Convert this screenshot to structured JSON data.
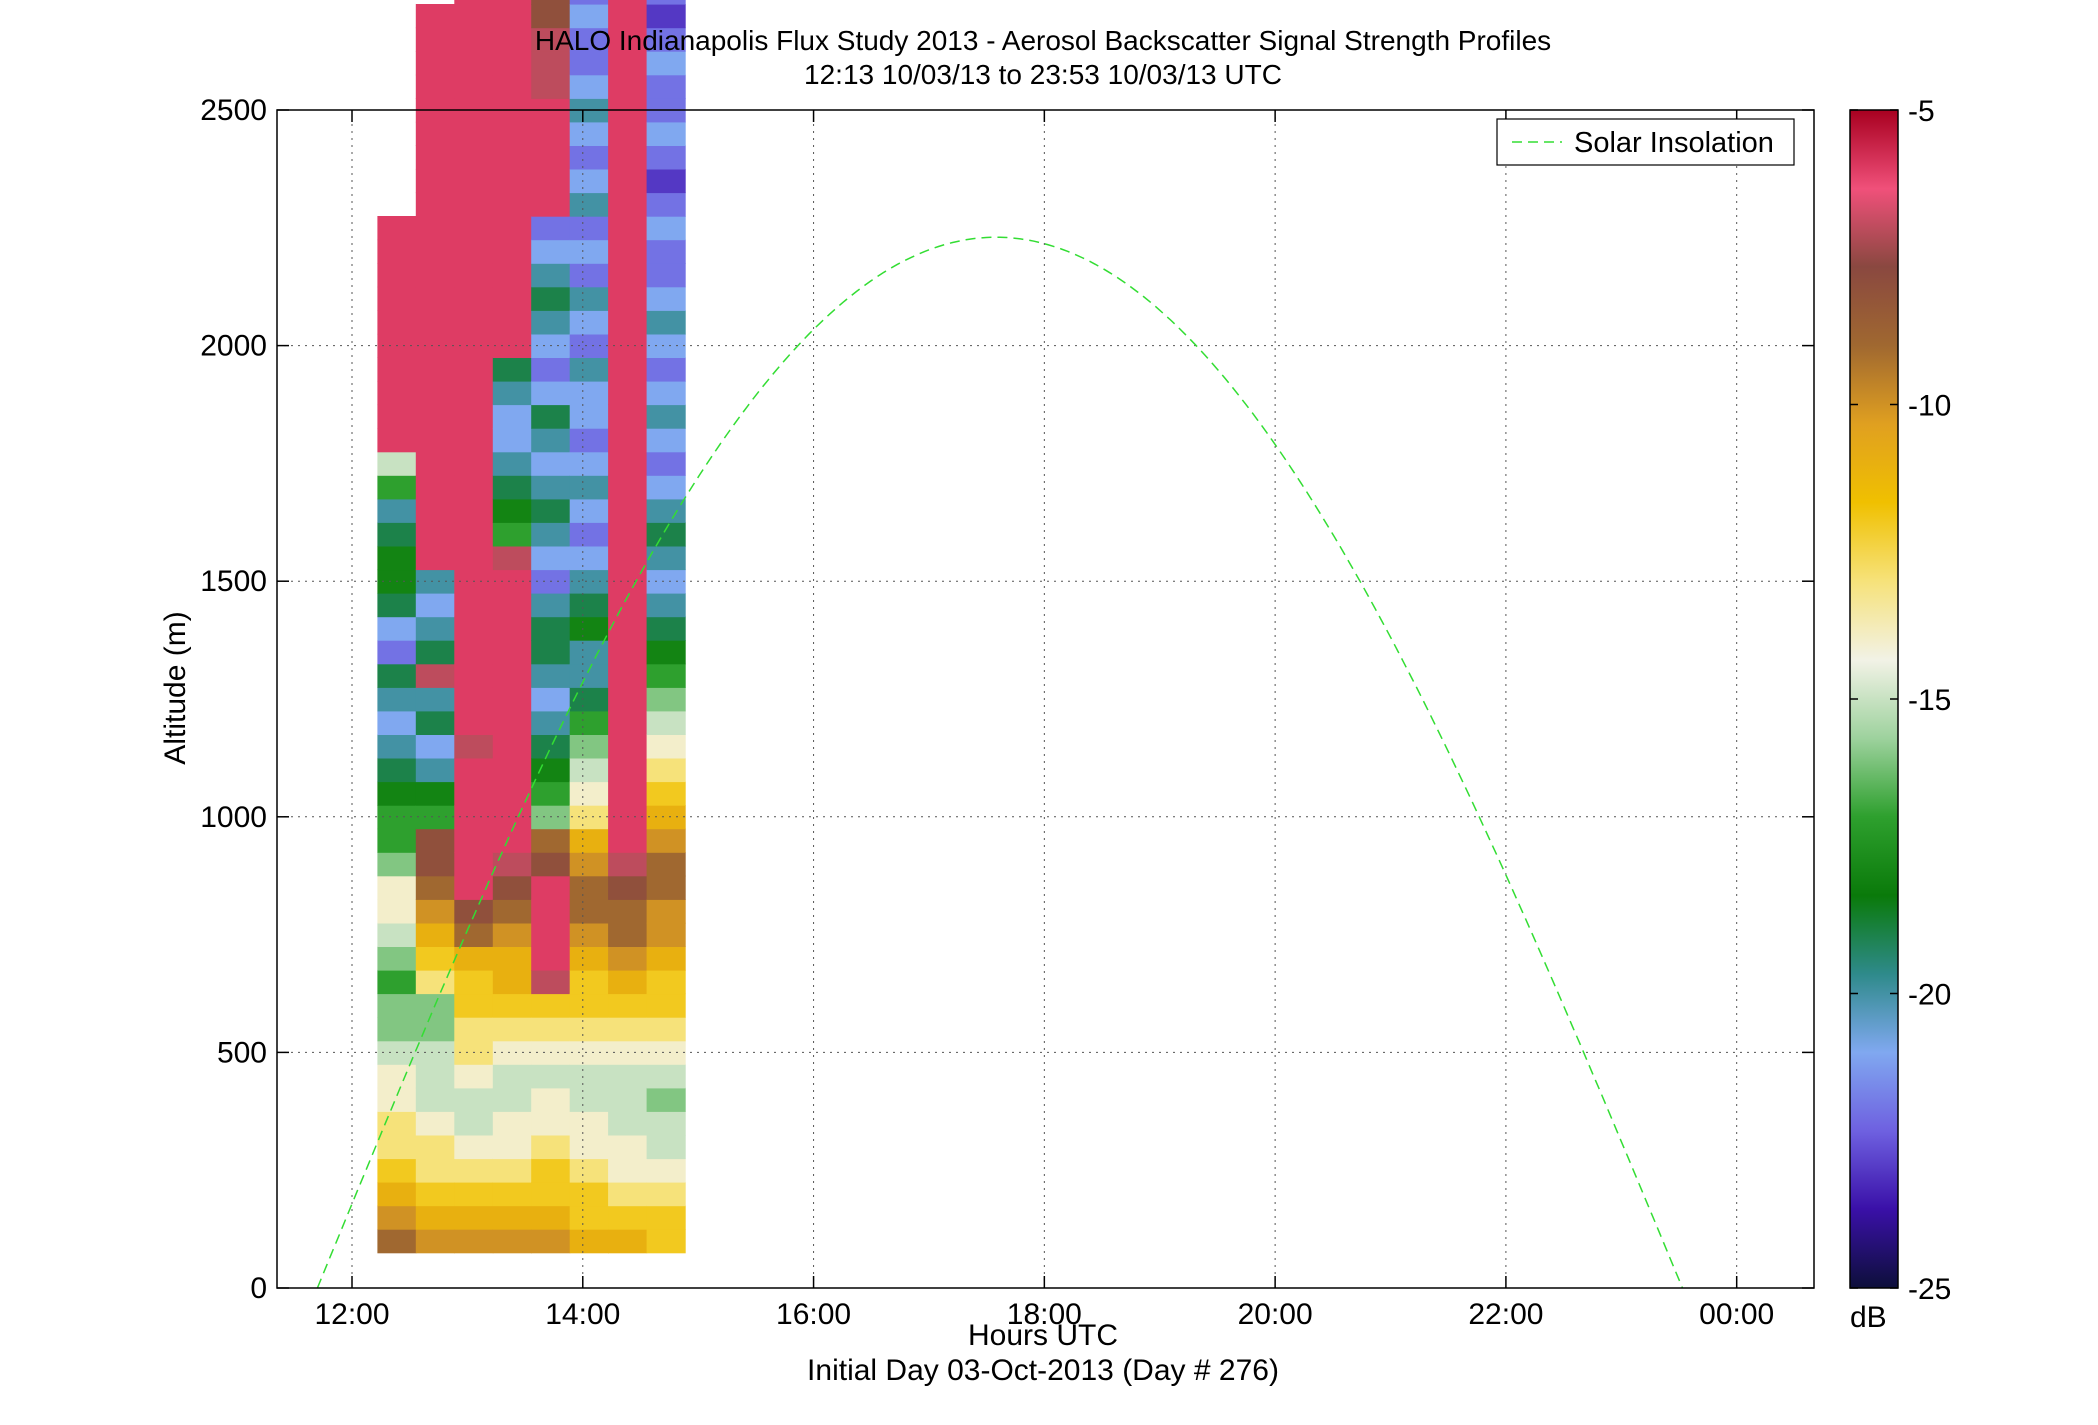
{
  "chart_data": {
    "type": "heatmap",
    "title": "HALO Indianapolis Flux Study 2013 - Aerosol Backscatter Signal Strength Profiles",
    "subtitle": "12:13 10/03/13 to 23:53 10/03/13  UTC",
    "xlabel": "Hours UTC",
    "xlabel2": "Initial Day 03-Oct-2013 (Day # 276)",
    "ylabel": "Altitude (m)",
    "x_tick_labels": [
      "12:00",
      "14:00",
      "16:00",
      "18:00",
      "20:00",
      "22:00",
      "00:00"
    ],
    "x_tick_hours": [
      12,
      14,
      16,
      18,
      20,
      22,
      24
    ],
    "xlim_hours": [
      11.35,
      24.67
    ],
    "y_ticks": [
      0,
      500,
      1000,
      1500,
      2000,
      2500
    ],
    "ylim": [
      0,
      2500
    ],
    "grid": true,
    "legend": {
      "entries": [
        "Solar Insolation"
      ],
      "placement": "top-right"
    },
    "colorbar": {
      "ticks": [
        -5,
        -10,
        -15,
        -20,
        -25
      ],
      "range": [
        -25,
        -5
      ],
      "unit": "dB",
      "colors": [
        "#0d0f3a",
        "#3a10a8",
        "#6e60e0",
        "#80a8f0",
        "#2e8a8a",
        "#0a7a0a",
        "#2ea02e",
        "#9ed29e",
        "#f2f2e6",
        "#f6e27a",
        "#f0c000",
        "#e0a020",
        "#a06830",
        "#8a4840",
        "#f0507a",
        "#a80020"
      ]
    },
    "solar_insolation": {
      "start_hour": 11.7,
      "peak_hour": 17.58,
      "end_hour": 23.53,
      "peak_altitude_m": 2230
    },
    "profiles": {
      "start_hour": 12.22,
      "step_hours": 0.3333,
      "bin_bottom_m": 75,
      "bin_height_m": 50,
      "dB": [
        [
          -9,
          -10,
          -11,
          -12,
          -13,
          -13,
          -14,
          -14,
          -15,
          -16,
          -16,
          -17,
          -16,
          -15,
          -14,
          -14,
          -16,
          -17,
          -17,
          -18,
          -19,
          -20,
          -21,
          -20,
          -19,
          -22,
          -21,
          -19,
          -18,
          -18,
          -19,
          -20,
          -17,
          -15,
          -6,
          -6,
          -6,
          -6,
          -6,
          -6,
          -6,
          -6,
          -6,
          -6,
          null,
          null,
          null,
          null,
          null,
          null,
          null,
          null,
          null,
          null,
          null,
          null,
          null,
          null,
          null,
          null,
          null,
          null,
          null,
          null,
          null,
          null,
          null,
          null,
          null,
          null,
          null,
          null,
          null,
          null,
          null,
          null,
          null,
          null,
          null,
          null,
          null,
          null,
          null,
          null,
          null,
          null,
          null,
          null,
          null,
          null,
          null,
          null,
          null,
          null,
          null,
          null,
          null,
          null,
          null
        ],
        [
          -10,
          -11,
          -12,
          -13,
          -13,
          -14,
          -15,
          -15,
          -15,
          -16,
          -16,
          -13,
          -12,
          -11,
          -10,
          -9,
          -8,
          -8,
          -17,
          -18,
          -20,
          -21,
          -19,
          -20,
          -7,
          -19,
          -20,
          -21,
          -20,
          -6,
          -6,
          -6,
          -6,
          -6,
          -6,
          -6,
          -6,
          -6,
          -6,
          -6,
          -6,
          -6,
          -6,
          -6,
          -6,
          -6,
          -6,
          -6,
          -6,
          -6,
          -6,
          -6,
          -6,
          null,
          null,
          null,
          null,
          null,
          null,
          null,
          null,
          null,
          null,
          null,
          null,
          null,
          null,
          null,
          null,
          null,
          null,
          null,
          null,
          null,
          null,
          null,
          null,
          null,
          null,
          null,
          null,
          null,
          null,
          null,
          null,
          null,
          null,
          null,
          null,
          null,
          null,
          null,
          null,
          null,
          null,
          null,
          null,
          null,
          null,
          null,
          null
        ],
        [
          -10,
          -11,
          -12,
          -13,
          -14,
          -15,
          -15,
          -14,
          -13,
          -13,
          -12,
          -12,
          -11,
          -9,
          -8,
          -6,
          -6,
          -6,
          -6,
          -6,
          -6,
          -7,
          -6,
          -6,
          -6,
          -6,
          -6,
          -6,
          -6,
          -6,
          -6,
          -6,
          -6,
          -6,
          -6,
          -6,
          -6,
          -6,
          -6,
          -6,
          -6,
          -6,
          -6,
          -6,
          -6,
          -6,
          -6,
          -6,
          -6,
          -6,
          -6,
          -6,
          -6,
          -6,
          -6,
          -6,
          -6,
          -6,
          -6,
          -7,
          -7,
          -15,
          -14,
          -16,
          -22,
          null,
          null,
          null,
          null,
          null,
          null,
          null,
          null,
          null,
          null,
          null,
          null,
          null,
          null,
          null,
          null,
          null,
          null,
          null,
          null,
          null,
          null,
          null,
          null,
          null,
          null,
          null,
          null,
          null,
          null,
          null,
          null,
          null,
          null
        ],
        [
          -10,
          -11,
          -12,
          -13,
          -14,
          -14,
          -15,
          -15,
          -14,
          -13,
          -12,
          -11,
          -11,
          -10,
          -9,
          -8,
          -7,
          -6,
          -6,
          -6,
          -6,
          -6,
          -6,
          -6,
          -6,
          -6,
          -6,
          -6,
          -6,
          -7,
          -17,
          -18,
          -19,
          -20,
          -21,
          -21,
          -20,
          -19,
          -6,
          -6,
          -6,
          -6,
          -6,
          -6,
          -6,
          -6,
          -6,
          -6,
          -6,
          -6,
          -6,
          -6,
          -6,
          -6,
          -6,
          -6,
          -6,
          -6,
          -6,
          -6,
          -6,
          -6,
          -6,
          -6,
          -6,
          -6,
          -6,
          -6,
          -6,
          -6,
          -6,
          null,
          null,
          null,
          null,
          null,
          null,
          null,
          null,
          null,
          null,
          null,
          null,
          null,
          null,
          null,
          null,
          null,
          null,
          null,
          null,
          null,
          null,
          null,
          null,
          null,
          null,
          null,
          null
        ],
        [
          -10,
          -11,
          -12,
          -12,
          -13,
          -14,
          -14,
          -15,
          -14,
          -13,
          -12,
          -7,
          -6,
          -6,
          -6,
          -6,
          -8,
          -9,
          -16,
          -17,
          -18,
          -19,
          -20,
          -21,
          -20,
          -19,
          -19,
          -20,
          -22,
          -21,
          -20,
          -19,
          -20,
          -21,
          -20,
          -19,
          -21,
          -22,
          -21,
          -20,
          -19,
          -20,
          -21,
          -22,
          -6,
          -6,
          -6,
          -6,
          -6,
          -7,
          -7,
          -7,
          -8,
          -8,
          -9,
          -8,
          -7,
          -6,
          -6,
          -6,
          -6,
          -6,
          -6,
          -6,
          -6,
          -6,
          -7,
          -8,
          -9,
          -10,
          -11,
          -14,
          -15,
          -16,
          null,
          null,
          null,
          null,
          null,
          null,
          null,
          null,
          null,
          null,
          null,
          null,
          null,
          null,
          null,
          null,
          null,
          null,
          null,
          null,
          null,
          null,
          null,
          null
        ],
        [
          -11,
          -12,
          -12,
          -13,
          -14,
          -14,
          -15,
          -15,
          -14,
          -13,
          -12,
          -12,
          -11,
          -10,
          -9,
          -9,
          -10,
          -11,
          -13,
          -14,
          -15,
          -16,
          -17,
          -19,
          -20,
          -20,
          -18,
          -19,
          -20,
          -21,
          -22,
          -21,
          -20,
          -21,
          -22,
          -21,
          -21,
          -20,
          -22,
          -21,
          -20,
          -22,
          -21,
          -22,
          -20,
          -21,
          -22,
          -21,
          -20,
          -21,
          -22,
          -22,
          -21,
          -22,
          -22,
          -21,
          -20,
          -21,
          -22,
          -22,
          -22,
          -21,
          -22,
          -23,
          -22,
          -21,
          -22,
          -23,
          -22,
          -22,
          -21,
          -22,
          -21,
          -22,
          -23,
          -22,
          -22,
          null,
          null,
          null,
          null,
          null,
          null,
          null,
          null,
          null,
          null,
          null,
          null,
          null,
          null,
          null,
          null,
          null,
          null,
          null,
          null,
          null,
          null
        ],
        [
          -11,
          -12,
          -13,
          -14,
          -14,
          -15,
          -15,
          -15,
          -14,
          -13,
          -12,
          -11,
          -10,
          -9,
          -9,
          -8,
          -7,
          -6,
          -6,
          -6,
          -6,
          -6,
          -6,
          -6,
          -6,
          -6,
          -6,
          -6,
          -6,
          -6,
          -6,
          -6,
          -6,
          -6,
          -6,
          -6,
          -6,
          -6,
          -6,
          -6,
          -6,
          -6,
          -6,
          -6,
          -6,
          -6,
          -6,
          -6,
          -6,
          -6,
          -6,
          -6,
          -6,
          -6,
          -6,
          -6,
          -6,
          -6,
          -6,
          -6,
          -6,
          -6,
          -6,
          -6,
          -6,
          -6,
          -6,
          -6,
          -6,
          -6,
          -6,
          -6,
          -6,
          -6,
          -6,
          -6,
          -6,
          -6,
          -6,
          -6,
          -6,
          -6,
          -6,
          -6,
          -6,
          -6,
          -6,
          null,
          null,
          null,
          null,
          null,
          null,
          null,
          null,
          null,
          null,
          null,
          null
        ],
        [
          -12,
          -12,
          -13,
          -14,
          -15,
          -15,
          -16,
          -15,
          -14,
          -13,
          -12,
          -12,
          -11,
          -10,
          -10,
          -9,
          -9,
          -10,
          -11,
          -12,
          -13,
          -14,
          -15,
          -16,
          -17,
          -18,
          -19,
          -20,
          -21,
          -20,
          -19,
          -20,
          -21,
          -22,
          -21,
          -20,
          -21,
          -22,
          -21,
          -20,
          -21,
          -22,
          -22,
          -21,
          -22,
          -23,
          -22,
          -21,
          -22,
          -22,
          -21,
          -22,
          -23,
          -22,
          -21,
          -22,
          -22,
          -21,
          -20,
          -21,
          -22,
          -22,
          -21,
          -22,
          -23,
          -22,
          -21,
          -22,
          -21,
          -22,
          -23,
          -22,
          -22,
          -21,
          -22,
          -21,
          -22,
          -23,
          -22,
          -22,
          -21,
          -22,
          -21,
          -22,
          -23,
          null,
          null,
          null,
          null,
          null,
          null,
          null,
          null,
          null,
          null,
          null,
          null,
          null,
          null
        ]
      ]
    }
  }
}
